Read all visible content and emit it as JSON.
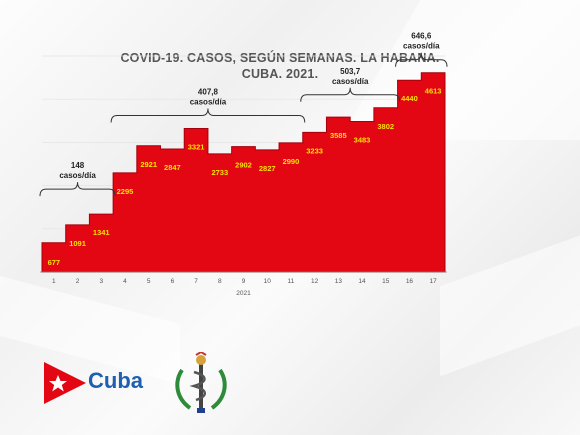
{
  "title": {
    "line1": "COVID-19. CASOS, SEGÚN SEMANAS. LA HABANA.",
    "line2": "CUBA. 2021."
  },
  "brand": {
    "name": "Cuba"
  },
  "chart_data": {
    "type": "bar",
    "categories": [
      "1",
      "2",
      "3",
      "4",
      "5",
      "6",
      "7",
      "8",
      "9",
      "10",
      "11",
      "12",
      "13",
      "14",
      "15",
      "16",
      "17"
    ],
    "values": [
      677,
      1091,
      1341,
      2295,
      2921,
      2847,
      3321,
      2733,
      2902,
      2827,
      2990,
      3233,
      3585,
      3483,
      3802,
      4440,
      4613
    ],
    "xlabel": "2021",
    "ylabel": "",
    "ylim": [
      0,
      5000
    ],
    "grid": true,
    "bar_color": "#e30613",
    "label_color": "#f7e300",
    "annotations": [
      {
        "text_value": "148",
        "text_unit": "casos/día",
        "from": "1",
        "to": "3"
      },
      {
        "text_value": "407,8",
        "text_unit": "casos/día",
        "from": "4",
        "to": "11"
      },
      {
        "text_value": "503,7",
        "text_unit": "casos/día",
        "from": "12",
        "to": "15"
      },
      {
        "text_value": "646,6",
        "text_unit": "casos/día",
        "from": "16",
        "to": "17"
      }
    ]
  }
}
